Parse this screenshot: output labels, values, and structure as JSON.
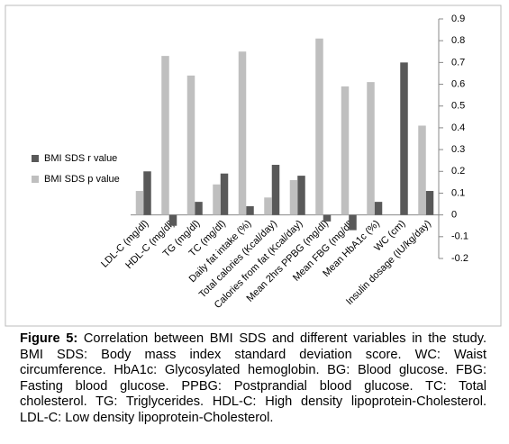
{
  "chart_data": {
    "type": "bar",
    "categories": [
      "LDL-C (mg/dl)",
      "HDL-C (mg/dl)",
      "TG (mg/dl)",
      "TC (mg/dl)",
      "Daily fat intake (%)",
      "Total calories (Kcal/day)",
      "Calories from fat (Kcal/day)",
      "Mean 2hrs PPBG (mg/dl)",
      "Mean FBG (mg/dl)",
      "Mean HbA1c (%)",
      "WC (cm)",
      "Insulin dosage (IU/kg/day)"
    ],
    "series": [
      {
        "name": "BMI SDS r value",
        "color": "#595959",
        "values": [
          0.2,
          -0.05,
          0.06,
          0.19,
          0.04,
          0.23,
          0.18,
          -0.03,
          -0.07,
          0.06,
          0.7,
          0.11
        ]
      },
      {
        "name": "BMI SDS p value",
        "color": "#bfbfbf",
        "values": [
          0.11,
          0.73,
          0.64,
          0.14,
          0.75,
          0.08,
          0.16,
          0.81,
          0.59,
          0.61,
          null,
          0.41
        ]
      }
    ],
    "ylim": [
      -0.2,
      0.9
    ],
    "yticks": [
      0.9,
      0.8,
      0.7,
      0.6,
      0.5,
      0.4,
      0.3,
      0.2,
      0.1,
      0,
      -0.1,
      -0.2
    ],
    "legend": "left",
    "grid": false
  },
  "caption": {
    "label": "Figure 5:",
    "text": " Correlation between BMI SDS and different variables in the study. BMI SDS: Body mass index standard deviation score. WC: Waist circumference. HbA1c: Glycosylated hemoglobin. BG: Blood glucose. FBG: Fasting blood glucose. PPBG: Postprandial blood glucose. TC: Total cholesterol. TG: Triglycerides. HDL-C: High density lipoprotein-Cholesterol. LDL-C: Low density lipoprotein-Cholesterol."
  }
}
